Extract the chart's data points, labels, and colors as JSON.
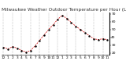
{
  "title": "Milwaukee Weather Outdoor Temperature per Hour (Last 24 Hours)",
  "background_color": "#ffffff",
  "line_color": "#cc0000",
  "marker_color": "#000000",
  "grid_color": "#999999",
  "ylim": [
    18,
    72
  ],
  "hours": [
    0,
    1,
    2,
    3,
    4,
    5,
    6,
    7,
    8,
    9,
    10,
    11,
    12,
    13,
    14,
    15,
    16,
    17,
    18,
    19,
    20,
    21,
    22,
    23
  ],
  "temps": [
    27,
    25,
    28,
    26,
    23,
    21,
    23,
    29,
    36,
    43,
    50,
    56,
    63,
    68,
    64,
    59,
    54,
    50,
    46,
    42,
    38,
    37,
    38,
    37
  ],
  "x_tick_labels": [
    "12",
    "1",
    "2",
    "3",
    "4",
    "5",
    "6",
    "7",
    "8",
    "9",
    "10",
    "11",
    "12",
    "1",
    "2",
    "3",
    "4",
    "5",
    "6",
    "7",
    "8",
    "9",
    "10",
    "11"
  ],
  "ytick_vals": [
    20,
    30,
    40,
    50,
    60,
    70
  ],
  "title_fontsize": 4.2,
  "tick_fontsize": 3.2,
  "vgrid_positions": [
    0,
    2,
    4,
    6,
    8,
    10,
    12,
    14,
    16,
    18,
    20,
    22
  ]
}
